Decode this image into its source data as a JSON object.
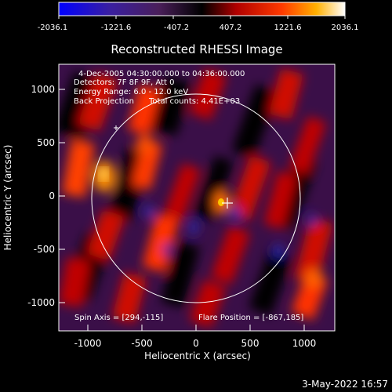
{
  "title": "Reconstructed RHESSI Image",
  "colorbar": {
    "ticks": [
      "-2036.1",
      "-1221.6",
      "-407.2",
      "407.2",
      "1221.6",
      "2036.1"
    ]
  },
  "info": {
    "line1": "4-Dec-2005 04:30:00.000 to 04:36:00.000",
    "line2": "Detectors: 7F 8F 9F, Att 0",
    "line3": "Energy Range: 6.0 - 12.0 keV",
    "line4a": "Back Projection",
    "line4b": "Total counts: 4.41E+03",
    "spin_axis": "Spin Axis = [294,-115]",
    "flare_position": "Flare Position = [-867,185]"
  },
  "axes": {
    "xlabel": "Heliocentric X (arcsec)",
    "ylabel": "Heliocentric Y (arcsec)",
    "xticks": [
      "-1000",
      "-500",
      "0",
      "500",
      "1000"
    ],
    "yticks": [
      "1000",
      "500",
      "0",
      "-500",
      "-1000"
    ]
  },
  "timestamp": "3-May-2022 16:57"
}
